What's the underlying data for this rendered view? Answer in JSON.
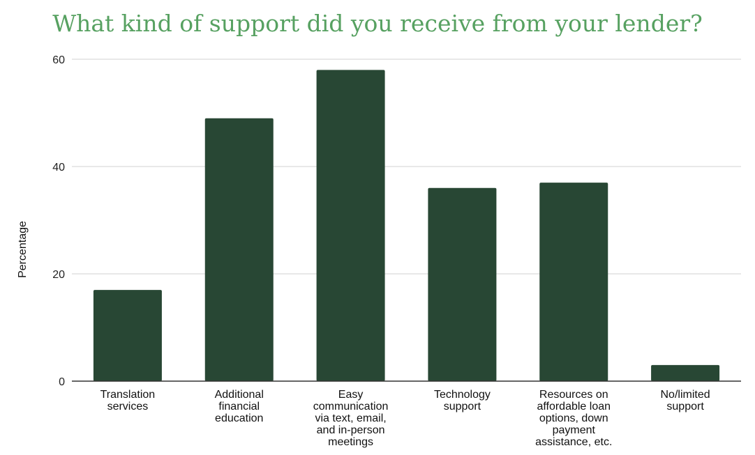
{
  "chart_data": {
    "type": "bar",
    "title": "What kind of support did you receive from your lender?",
    "xlabel": "",
    "ylabel": "Percentage",
    "ylim": [
      0,
      60
    ],
    "yticks": [
      0,
      20,
      40,
      60
    ],
    "grid": true,
    "legend": "none",
    "categories": [
      "Translation services",
      "Additional financial education",
      "Easy communication via text, email, and in-person meetings",
      "Technology support",
      "Resources on affordable loan options, down payment assistance, etc.",
      "No/limited support"
    ],
    "category_lines": [
      [
        "Translation",
        "services"
      ],
      [
        "Additional",
        "financial",
        "education"
      ],
      [
        "Easy",
        "communication",
        "via text, email,",
        "and in-person",
        "meetings"
      ],
      [
        "Technology",
        "support"
      ],
      [
        "Resources on",
        "affordable loan",
        "options, down",
        "payment",
        "assistance, etc."
      ],
      [
        "No/limited",
        "support"
      ]
    ],
    "values": [
      17,
      49,
      58,
      36,
      37,
      3
    ],
    "colors": {
      "bar": "#284734",
      "title": "#57a161",
      "grid": "#d9d9d9",
      "axis": "#333333"
    }
  }
}
